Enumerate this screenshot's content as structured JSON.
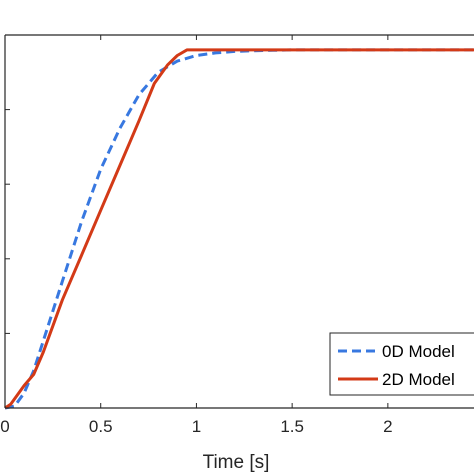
{
  "chart_data": {
    "type": "line",
    "title": "",
    "xlabel": "Time [s]",
    "ylabel": "",
    "xlim": [
      0,
      2.45
    ],
    "ylim": [
      0,
      1.0
    ],
    "x_ticks": [
      0,
      0.5,
      1,
      1.5,
      2
    ],
    "x_tick_labels": [
      "0",
      "0.5",
      "1",
      "1.5",
      "2"
    ],
    "y_ticks": [
      0,
      0.2,
      0.4,
      0.6,
      0.8,
      1.0
    ],
    "grid": false,
    "legend_position": "bottom-right",
    "series": [
      {
        "name": "0D Model",
        "color": "#3878e0",
        "dash": "dashed",
        "x": [
          0,
          0.05,
          0.1,
          0.15,
          0.2,
          0.3,
          0.4,
          0.5,
          0.6,
          0.7,
          0.8,
          0.9,
          1.0,
          1.1,
          1.2,
          1.3,
          1.4,
          1.5,
          1.6,
          2.45
        ],
        "y": [
          0,
          0.005,
          0.04,
          0.1,
          0.18,
          0.34,
          0.5,
          0.64,
          0.75,
          0.84,
          0.9,
          0.93,
          0.945,
          0.952,
          0.956,
          0.958,
          0.959,
          0.96,
          0.96,
          0.96
        ]
      },
      {
        "name": "2D Model",
        "color": "#d33a17",
        "dash": "solid",
        "x": [
          0,
          0.03,
          0.1,
          0.15,
          0.2,
          0.3,
          0.4,
          0.5,
          0.6,
          0.7,
          0.78,
          0.85,
          0.9,
          0.95,
          1.0,
          1.5,
          2.0,
          2.45
        ],
        "y": [
          0,
          0.01,
          0.06,
          0.09,
          0.15,
          0.29,
          0.41,
          0.53,
          0.65,
          0.77,
          0.87,
          0.92,
          0.945,
          0.96,
          0.96,
          0.96,
          0.96,
          0.96
        ]
      }
    ]
  }
}
